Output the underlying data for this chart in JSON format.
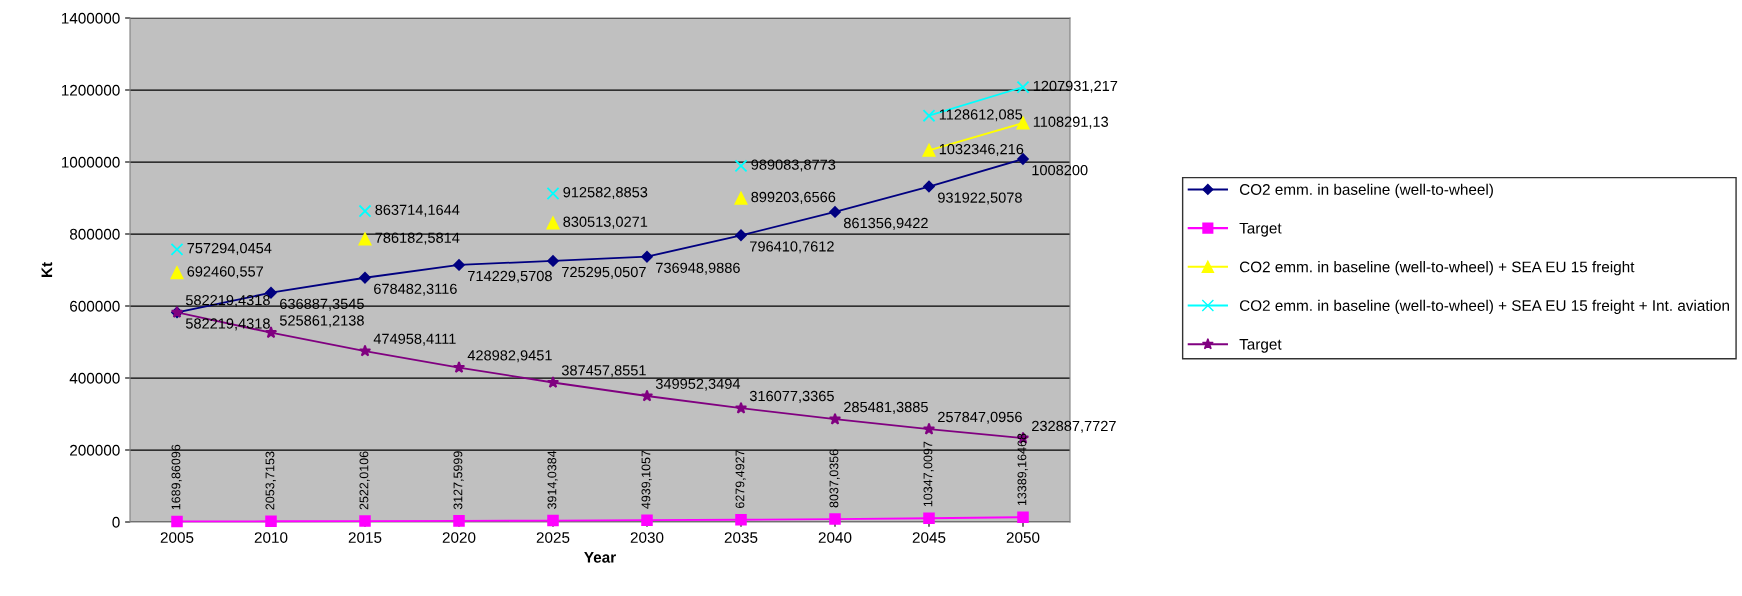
{
  "chart_data": {
    "type": "line",
    "xlabel": "Year",
    "ylabel": "Kt",
    "categories": [
      "2005",
      "2010",
      "2015",
      "2020",
      "2025",
      "2030",
      "2035",
      "2040",
      "2045",
      "2050"
    ],
    "ylim": [
      0,
      1400000
    ],
    "yticks": [
      0,
      200000,
      400000,
      600000,
      800000,
      1000000,
      1200000,
      1400000
    ],
    "grid": "y",
    "legend": "right",
    "line_style": "solid",
    "series": [
      {
        "name": "CO2 emm. in baseline (well-to-wheel)",
        "color": "#000080",
        "marker": "diamond",
        "values": [
          582219.4318,
          636887.3545,
          678482.3116,
          714229.5708,
          725295.0507,
          736948.9886,
          796410.7612,
          861356.9422,
          931922.5078,
          1008200
        ],
        "value_labels": [
          "582219,4318",
          "636887,3545",
          "678482,3116",
          "714229,5708",
          "725295,0507",
          "736948,9886",
          "796410,7612",
          "861356,9422",
          "931922,5078",
          "1008200"
        ]
      },
      {
        "name": "Target",
        "color": "#ff00ff",
        "marker": "square",
        "values": [
          1689.86096,
          2053.7153,
          2522.0106,
          3127.5999,
          3914.0384,
          4939.1057,
          6279.4927,
          8037.0356,
          10347.0097,
          13389.16468
        ],
        "value_labels": [
          "1689,86096",
          "2053,7153",
          "2522,0106",
          "3127,5999",
          "3914,0384",
          "4939,1057",
          "6279,4927",
          "8037,0356",
          "10347,0097",
          "13389,16468"
        ]
      },
      {
        "name": "CO2 emm. in baseline (well-to-wheel) + SEA EU 15 freight",
        "color": "#ffff00",
        "marker": "triangle",
        "values": [
          692460.557,
          null,
          786182.5814,
          null,
          830513.0271,
          null,
          899203.6566,
          null,
          1032346.216,
          1108291.13
        ],
        "value_labels": [
          "692460,557",
          null,
          "786182,5814",
          null,
          "830513,0271",
          null,
          "899203,6566",
          null,
          "1032346,216",
          "1108291,13"
        ]
      },
      {
        "name": "CO2 emm. in baseline (well-to-wheel) + SEA EU 15 freight + Int. aviation",
        "color": "#00ffff",
        "marker": "cross",
        "values": [
          757294.0454,
          null,
          863714.1644,
          null,
          912582.8853,
          null,
          989083.8773,
          null,
          1128612.085,
          1207931.217
        ],
        "value_labels": [
          "757294,0454",
          null,
          "863714,1644",
          null,
          "912582,8853",
          null,
          "989083,8773",
          null,
          "1128612,085",
          "1207931,217"
        ]
      },
      {
        "name": "Target",
        "color": "#800080",
        "marker": "star",
        "values": [
          582219.4318,
          525861.2138,
          474958.4111,
          428982.9451,
          387457.8551,
          349952.3494,
          316077.3365,
          285481.3885,
          257847.0956,
          232887.7727
        ],
        "value_labels": [
          "582219,4318",
          "525861,2138",
          "474958,4111",
          "428982,9451",
          "387457,8551",
          "349952,3494",
          "316077,3365",
          "285481,3885",
          "257847,0956",
          "232887,7727"
        ]
      }
    ]
  }
}
